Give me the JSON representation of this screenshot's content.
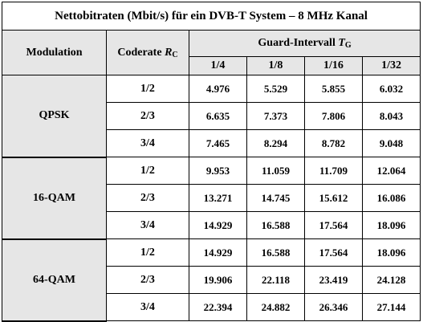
{
  "title": "Nettobitraten (Mbit/s) für ein DVB-T System – 8 MHz Kanal",
  "headers": {
    "modulation": "Modulation",
    "coderate_label": "Coderate",
    "coderate_symbol": "R",
    "coderate_subscript": "C",
    "guard_label": "Guard-Intervall",
    "guard_symbol": "T",
    "guard_subscript": "G",
    "guard_values": [
      "1/4",
      "1/8",
      "1/16",
      "1/32"
    ]
  },
  "groups": [
    {
      "modulation": "QPSK",
      "rows": [
        {
          "coderate": "1/2",
          "values": [
            "4.976",
            "5.529",
            "5.855",
            "6.032"
          ]
        },
        {
          "coderate": "2/3",
          "values": [
            "6.635",
            "7.373",
            "7.806",
            "8.043"
          ]
        },
        {
          "coderate": "3/4",
          "values": [
            "7.465",
            "8.294",
            "8.782",
            "9.048"
          ]
        }
      ]
    },
    {
      "modulation": "16-QAM",
      "rows": [
        {
          "coderate": "1/2",
          "values": [
            "9.953",
            "11.059",
            "11.709",
            "12.064"
          ]
        },
        {
          "coderate": "2/3",
          "values": [
            "13.271",
            "14.745",
            "15.612",
            "16.086"
          ]
        },
        {
          "coderate": "3/4",
          "values": [
            "14.929",
            "16.588",
            "17.564",
            "18.096"
          ]
        }
      ]
    },
    {
      "modulation": "64-QAM",
      "rows": [
        {
          "coderate": "1/2",
          "values": [
            "14.929",
            "16.588",
            "17.564",
            "18.096"
          ]
        },
        {
          "coderate": "2/3",
          "values": [
            "19.906",
            "22.118",
            "23.419",
            "24.128"
          ]
        },
        {
          "coderate": "3/4",
          "values": [
            "22.394",
            "24.882",
            "26.346",
            "27.144"
          ]
        }
      ]
    }
  ]
}
